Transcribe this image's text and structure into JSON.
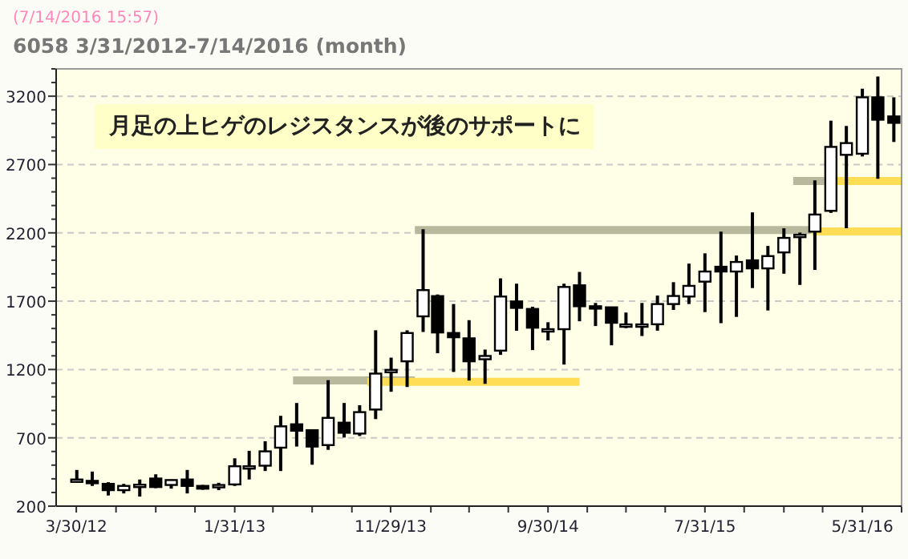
{
  "chart_data": {
    "type": "candlestick",
    "title": "6058 3/31/2012-7/14/2016 (month)",
    "subtitle": "(7/14/2016 15:57)",
    "annotations": [
      "月足の上ヒゲのレジスタンスが後のサポートに"
    ],
    "x": [
      "2012-03-31",
      "2012-04-30",
      "2012-05-31",
      "2012-06-30",
      "2012-07-31",
      "2012-08-31",
      "2012-09-30",
      "2012-10-31",
      "2012-11-30",
      "2012-12-31",
      "2013-01-31",
      "2013-02-28",
      "2013-03-31",
      "2013-04-30",
      "2013-05-31",
      "2013-06-30",
      "2013-07-31",
      "2013-08-31",
      "2013-09-30",
      "2013-10-31",
      "2013-11-30",
      "2013-12-31",
      "2014-01-31",
      "2014-02-28",
      "2014-03-31",
      "2014-04-30",
      "2014-05-31",
      "2014-06-30",
      "2014-07-31",
      "2014-08-31",
      "2014-09-30",
      "2014-10-31",
      "2014-11-30",
      "2014-12-31",
      "2015-01-31",
      "2015-02-28",
      "2015-03-31",
      "2015-04-30",
      "2015-05-31",
      "2015-06-30",
      "2015-07-31",
      "2015-08-31",
      "2015-09-30",
      "2015-10-31",
      "2015-11-30",
      "2015-12-31",
      "2016-01-31",
      "2016-02-29",
      "2016-03-31",
      "2016-04-30",
      "2016-05-31",
      "2016-06-30",
      "2016-07-31"
    ],
    "ohlc": [
      [
        390,
        465,
        375,
        395
      ],
      [
        385,
        453,
        348,
        380
      ],
      [
        363,
        375,
        278,
        317
      ],
      [
        317,
        363,
        293,
        348
      ],
      [
        355,
        395,
        270,
        357
      ],
      [
        402,
        433,
        332,
        340
      ],
      [
        355,
        395,
        328,
        391
      ],
      [
        395,
        465,
        293,
        348
      ],
      [
        348,
        355,
        320,
        328
      ],
      [
        352,
        371,
        317,
        355
      ],
      [
        359,
        550,
        348,
        492
      ],
      [
        485,
        605,
        395,
        492
      ],
      [
        496,
        675,
        457,
        601
      ],
      [
        628,
        861,
        457,
        784
      ],
      [
        799,
        955,
        636,
        752
      ],
      [
        756,
        756,
        503,
        636
      ],
      [
        647,
        1122,
        612,
        846
      ],
      [
        811,
        955,
        702,
        737
      ],
      [
        731,
        939,
        713,
        888
      ],
      [
        907,
        1487,
        837,
        1170
      ],
      [
        1190,
        1287,
        1037,
        1197
      ],
      [
        1260,
        1487,
        1072,
        1467
      ],
      [
        1589,
        2227,
        1475,
        1781
      ],
      [
        1737,
        1749,
        1319,
        1471
      ],
      [
        1467,
        1679,
        1182,
        1436
      ],
      [
        1428,
        1561,
        1119,
        1260
      ],
      [
        1275,
        1346,
        1095,
        1299
      ],
      [
        1338,
        1867,
        1307,
        1734
      ],
      [
        1698,
        1828,
        1483,
        1651
      ],
      [
        1643,
        1659,
        1342,
        1506
      ],
      [
        1490,
        1546,
        1413,
        1495
      ],
      [
        1495,
        1828,
        1236,
        1804
      ],
      [
        1816,
        1914,
        1553,
        1663
      ],
      [
        1663,
        1687,
        1518,
        1659
      ],
      [
        1655,
        1655,
        1377,
        1542
      ],
      [
        1525,
        1617,
        1503,
        1530
      ],
      [
        1527,
        1687,
        1445,
        1530
      ],
      [
        1531,
        1741,
        1484,
        1679
      ],
      [
        1679,
        1839,
        1636,
        1738
      ],
      [
        1734,
        1975,
        1679,
        1812
      ],
      [
        1843,
        2050,
        1620,
        1917
      ],
      [
        1952,
        2209,
        1539,
        1917
      ],
      [
        1917,
        2034,
        1585,
        1987
      ],
      [
        1999,
        2350,
        1796,
        1940
      ],
      [
        1940,
        2104,
        1632,
        2030
      ],
      [
        2057,
        2233,
        1901,
        2163
      ],
      [
        2180,
        2202,
        1819,
        2186
      ],
      [
        2209,
        2584,
        1929,
        2334
      ],
      [
        2361,
        3021,
        2346,
        2829
      ],
      [
        2771,
        2982,
        2233,
        2857
      ],
      [
        2779,
        3255,
        2759,
        3192
      ],
      [
        3192,
        3344,
        2596,
        3028
      ],
      [
        3052,
        3192,
        2865,
        3005
      ]
    ],
    "series": [
      {
        "type": "line",
        "color": "#b8b89c",
        "x": [
          "2013-05-24",
          "2014-01-15"
        ],
        "values": [
          1120,
          1120
        ]
      },
      {
        "type": "line",
        "color": "#ffdd55",
        "x": [
          "2013-10-15",
          "2014-11-30"
        ],
        "values": [
          1110,
          1110
        ]
      },
      {
        "type": "line",
        "color": "#b8b89c",
        "x": [
          "2014-01-15",
          "2016-02-21"
        ],
        "values": [
          2220,
          2220
        ]
      },
      {
        "type": "line",
        "color": "#ffdd55",
        "x": [
          "2016-02-24",
          "2016-08-15"
        ],
        "values": [
          2210,
          2210
        ]
      },
      {
        "type": "line",
        "color": "#b8b89c",
        "x": [
          "2016-01-18",
          "2016-03-18"
        ],
        "values": [
          2580,
          2580
        ]
      },
      {
        "type": "line",
        "color": "#ffdd55",
        "x": [
          "2016-04-12",
          "2016-08-15"
        ],
        "values": [
          2580,
          2580
        ]
      }
    ],
    "xlim": [
      "2012-02-20",
      "2016-08-15"
    ],
    "xticks": [
      {
        "value": "2012-03-30",
        "label": "3/30/12"
      },
      {
        "value": "2012-06-15",
        "label": null
      },
      {
        "value": "2012-08-31",
        "label": null
      },
      {
        "value": "2012-11-15",
        "label": null
      },
      {
        "value": "2013-01-31",
        "label": "1/31/13"
      },
      {
        "value": "2013-04-15",
        "label": null
      },
      {
        "value": "2013-06-30",
        "label": null
      },
      {
        "value": "2013-09-15",
        "label": null
      },
      {
        "value": "2013-11-29",
        "label": "11/29/13"
      },
      {
        "value": "2014-02-15",
        "label": null
      },
      {
        "value": "2014-04-30",
        "label": null
      },
      {
        "value": "2014-07-15",
        "label": null
      },
      {
        "value": "2014-09-30",
        "label": "9/30/14"
      },
      {
        "value": "2014-12-15",
        "label": null
      },
      {
        "value": "2015-02-28",
        "label": null
      },
      {
        "value": "2015-05-15",
        "label": null
      },
      {
        "value": "2015-07-31",
        "label": "7/31/15"
      },
      {
        "value": "2015-10-15",
        "label": null
      },
      {
        "value": "2015-12-31",
        "label": null
      },
      {
        "value": "2016-03-15",
        "label": null
      },
      {
        "value": "2016-05-31",
        "label": "5/31/16"
      },
      {
        "value": "2016-08-15",
        "label": null
      }
    ],
    "ylim": [
      200,
      3400
    ],
    "yticks": [
      200,
      {
        "value": 300,
        "label": null
      },
      {
        "value": 400,
        "label": null
      },
      {
        "value": 500,
        "label": null
      },
      {
        "value": 600,
        "label": null
      },
      700,
      {
        "value": 800,
        "label": null
      },
      {
        "value": 900,
        "label": null
      },
      {
        "value": 1000,
        "label": null
      },
      {
        "value": 1100,
        "label": null
      },
      1200,
      {
        "value": 1300,
        "label": null
      },
      {
        "value": 1400,
        "label": null
      },
      {
        "value": 1500,
        "label": null
      },
      {
        "value": 1600,
        "label": null
      },
      1700,
      {
        "value": 1800,
        "label": null
      },
      {
        "value": 1900,
        "label": null
      },
      {
        "value": 2000,
        "label": null
      },
      {
        "value": 2100,
        "label": null
      },
      2200,
      {
        "value": 2300,
        "label": null
      },
      {
        "value": 2400,
        "label": null
      },
      {
        "value": 2500,
        "label": null
      },
      {
        "value": 2600,
        "label": null
      },
      2700,
      {
        "value": 2800,
        "label": null
      },
      {
        "value": 2900,
        "label": null
      },
      {
        "value": 3000,
        "label": null
      },
      {
        "value": 3100,
        "label": null
      },
      3200,
      {
        "value": 3300,
        "label": null
      },
      {
        "value": 3400,
        "label": null
      }
    ],
    "grid": "y"
  }
}
